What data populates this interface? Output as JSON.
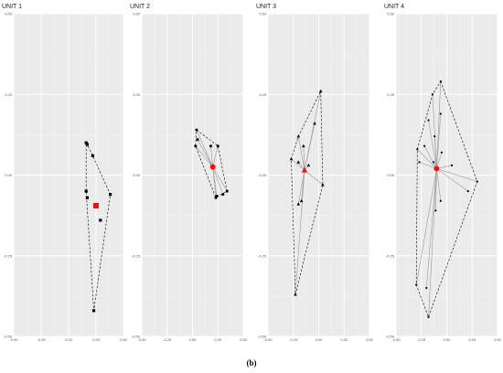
{
  "caption": "(b)",
  "chart_data": [
    {
      "type": "scatter",
      "title": "UNIT 1",
      "marker": "square",
      "xlim": [
        -0.5,
        0.5
      ],
      "ylim": [
        -0.5,
        0.5
      ],
      "xticks": [
        "-0.50",
        "-0.25",
        "0.00",
        "0.25",
        "0.50"
      ],
      "yticks": [
        "0.50",
        "0.25",
        "0.00",
        "-0.25",
        "-0.50"
      ],
      "grid": true,
      "points": [
        [
          0.16,
          0.1
        ],
        [
          0.17,
          0.095
        ],
        [
          0.22,
          0.06
        ],
        [
          0.16,
          -0.05
        ],
        [
          0.17,
          -0.07
        ],
        [
          0.38,
          -0.06
        ],
        [
          0.29,
          -0.14
        ],
        [
          0.23,
          -0.42
        ]
      ],
      "hull": [
        [
          0.16,
          0.1
        ],
        [
          0.22,
          0.06
        ],
        [
          0.38,
          -0.06
        ],
        [
          0.23,
          -0.42
        ],
        [
          0.16,
          -0.05
        ]
      ],
      "centroid": [
        0.25,
        -0.095
      ],
      "spokes": false
    },
    {
      "type": "scatter",
      "title": "UNIT 2",
      "marker": "circle",
      "xlim": [
        -0.5,
        0.5
      ],
      "ylim": [
        -0.5,
        0.5
      ],
      "xticks": [
        "-0.50",
        "-0.25",
        "0.00",
        "0.25",
        "0.50"
      ],
      "yticks": [
        "0.50",
        "0.25",
        "0.00",
        "-0.25",
        "-0.50"
      ],
      "grid": true,
      "points": [
        [
          0.04,
          0.14
        ],
        [
          0.05,
          0.11
        ],
        [
          0.03,
          0.09
        ],
        [
          0.18,
          0.09
        ],
        [
          0.25,
          0.09
        ],
        [
          0.34,
          -0.05
        ],
        [
          0.3,
          -0.06
        ],
        [
          0.24,
          -0.065
        ],
        [
          0.23,
          -0.07
        ]
      ],
      "hull": [
        [
          0.04,
          0.14
        ],
        [
          0.25,
          0.09
        ],
        [
          0.34,
          -0.05
        ],
        [
          0.23,
          -0.07
        ],
        [
          0.03,
          0.09
        ]
      ],
      "centroid": [
        0.2,
        0.025
      ],
      "spokes": true
    },
    {
      "type": "scatter",
      "title": "UNIT 3",
      "marker": "triangle",
      "xlim": [
        -0.5,
        0.5
      ],
      "ylim": [
        -0.5,
        0.5
      ],
      "xticks": [
        "-0.50",
        "-0.25",
        "0.00",
        "0.25",
        "0.50"
      ],
      "yticks": [
        "0.50",
        "0.25",
        "0.00",
        "-0.25",
        "-0.50"
      ],
      "grid": true,
      "points": [
        [
          0.02,
          0.26
        ],
        [
          -0.04,
          0.16
        ],
        [
          -0.2,
          0.12
        ],
        [
          -0.15,
          0.09
        ],
        [
          -0.27,
          0.05
        ],
        [
          -0.2,
          0.04
        ],
        [
          -0.1,
          0.03
        ],
        [
          0.04,
          -0.03
        ],
        [
          -0.17,
          -0.08
        ],
        [
          -0.2,
          -0.09
        ],
        [
          -0.23,
          -0.37
        ]
      ],
      "hull": [
        [
          0.02,
          0.26
        ],
        [
          0.04,
          -0.03
        ],
        [
          -0.23,
          -0.37
        ],
        [
          -0.27,
          0.05
        ],
        [
          -0.2,
          0.12
        ]
      ],
      "centroid": [
        -0.14,
        0.015
      ],
      "spokes": true
    },
    {
      "type": "scatter",
      "title": "UNIT 4",
      "marker": "dot",
      "xlim": [
        -0.5,
        0.5
      ],
      "ylim": [
        -0.5,
        0.5
      ],
      "xticks": [
        "-0.50",
        "-0.25",
        "0.00",
        "0.25",
        "0.50"
      ],
      "yticks": [
        "0.50",
        "0.25",
        "0.00",
        "-0.25",
        "-0.50"
      ],
      "grid": true,
      "points": [
        [
          -0.06,
          0.29
        ],
        [
          -0.14,
          0.25
        ],
        [
          -0.18,
          0.17
        ],
        [
          -0.06,
          0.19
        ],
        [
          -0.12,
          0.12
        ],
        [
          -0.22,
          0.09
        ],
        [
          -0.29,
          0.08
        ],
        [
          -0.05,
          0.07
        ],
        [
          -0.27,
          0.04
        ],
        [
          -0.13,
          0.04
        ],
        [
          0.05,
          0.03
        ],
        [
          0.21,
          -0.05
        ],
        [
          0.3,
          -0.02
        ],
        [
          -0.06,
          -0.08
        ],
        [
          -0.11,
          -0.11
        ],
        [
          -0.3,
          -0.34
        ],
        [
          -0.2,
          -0.35
        ],
        [
          -0.18,
          -0.44
        ]
      ],
      "hull": [
        [
          -0.06,
          0.29
        ],
        [
          0.3,
          -0.02
        ],
        [
          -0.18,
          -0.44
        ],
        [
          -0.3,
          -0.34
        ],
        [
          -0.29,
          0.08
        ],
        [
          -0.14,
          0.25
        ]
      ],
      "centroid": [
        -0.1,
        0.02
      ],
      "spokes": true
    }
  ]
}
